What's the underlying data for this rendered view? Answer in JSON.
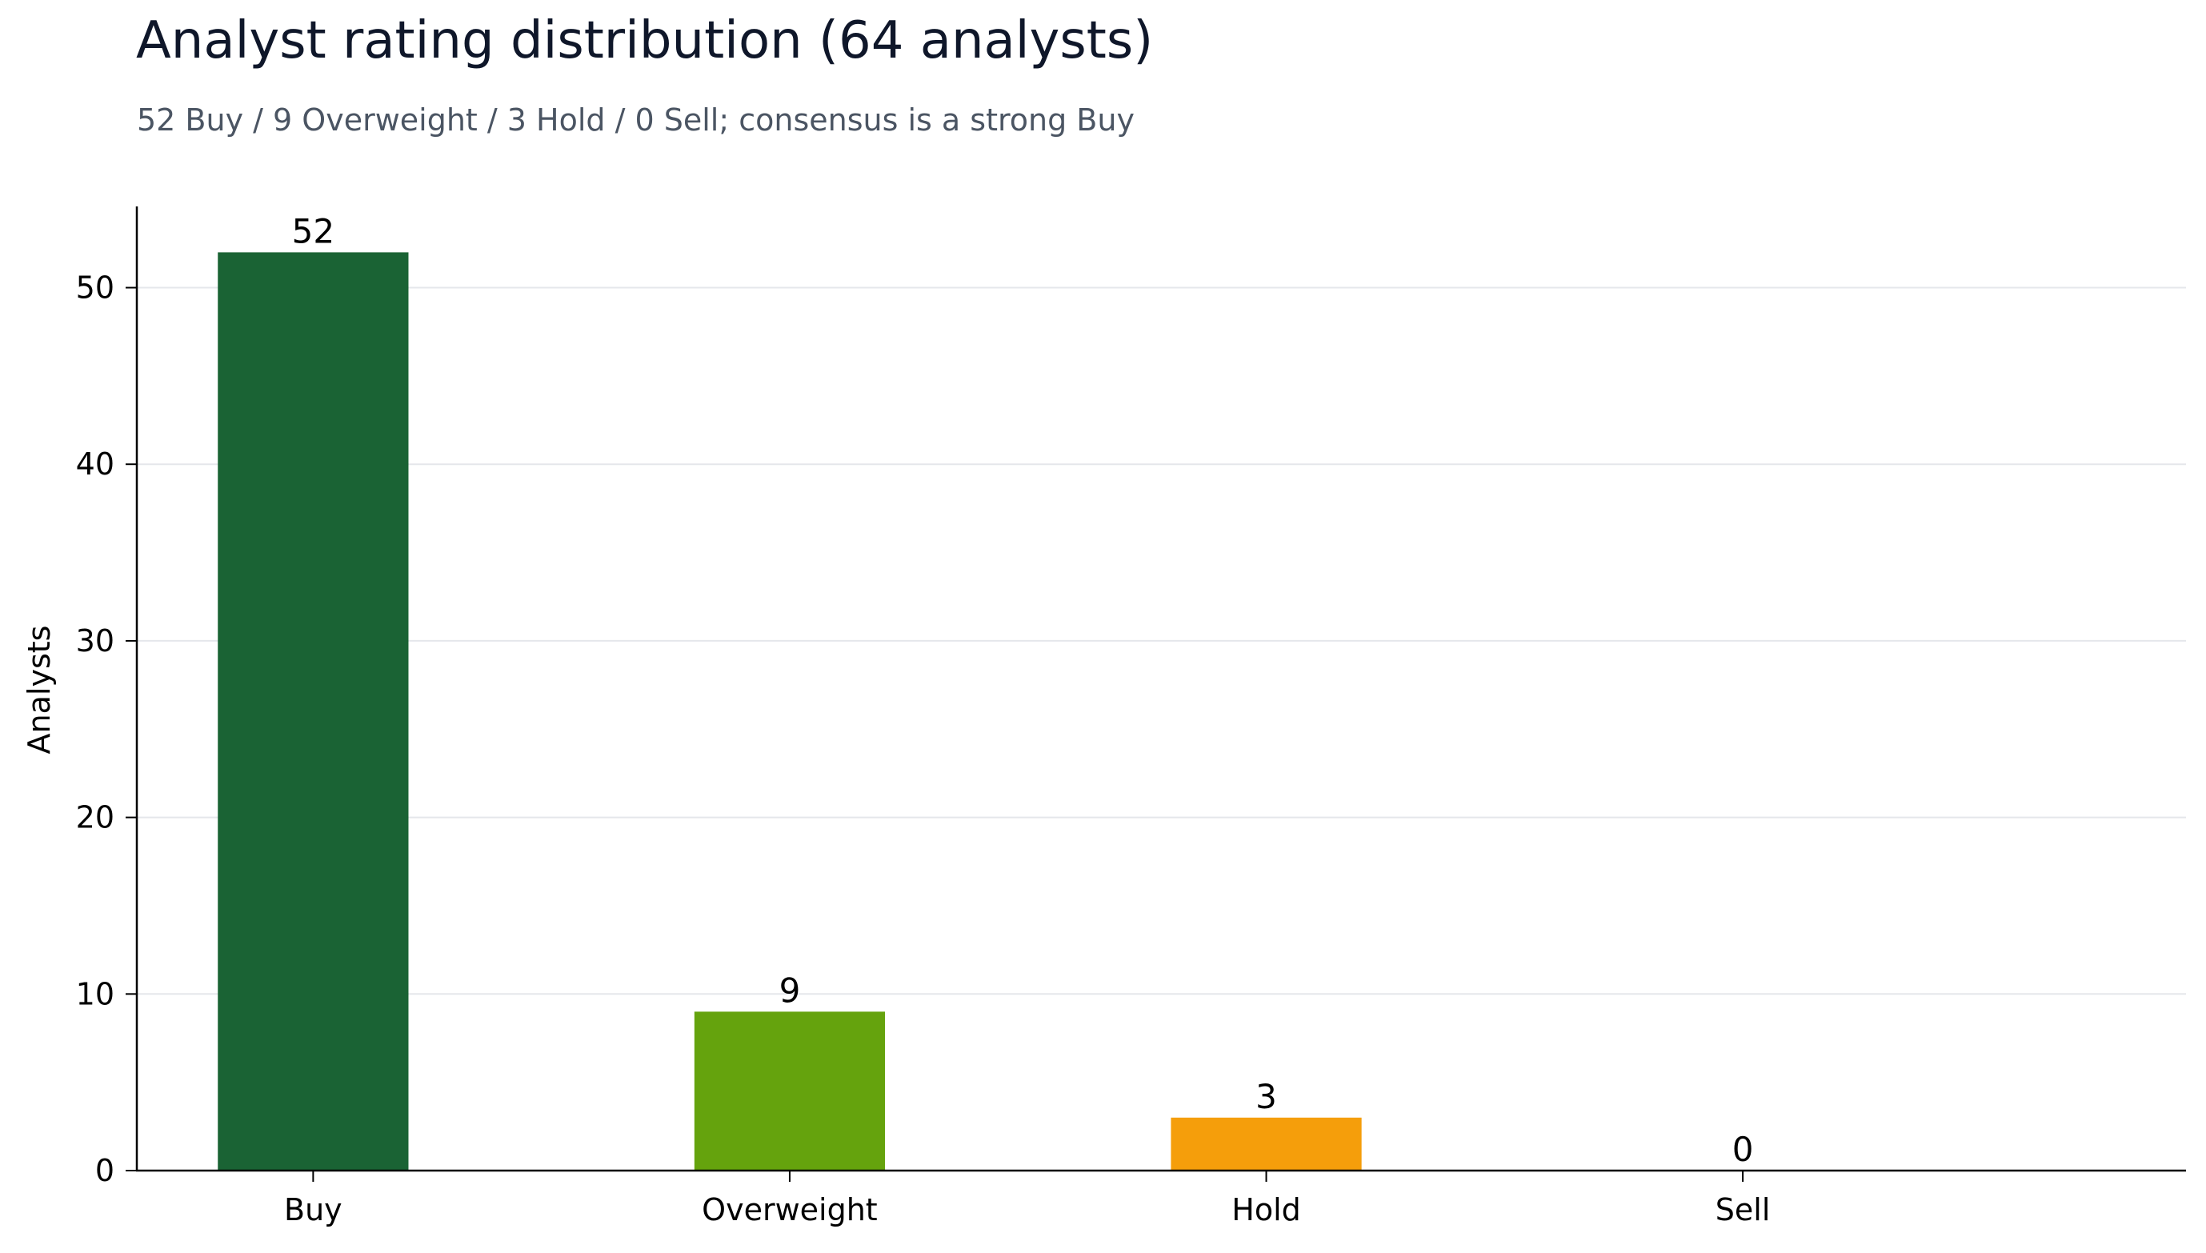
{
  "chart_data": {
    "type": "bar",
    "title": "Analyst rating distribution (64 analysts)",
    "subtitle": "52 Buy / 9 Overweight / 3 Hold / 0 Sell; consensus is a strong Buy",
    "xlabel": "",
    "ylabel": "Analysts",
    "categories": [
      "Buy",
      "Overweight",
      "Hold",
      "Sell"
    ],
    "values": [
      52,
      9,
      3,
      0
    ],
    "data_labels": [
      "52",
      "9",
      "3",
      "0"
    ],
    "colors": [
      "#1a6334",
      "#65a30d",
      "#f59e0b",
      "#dc2626"
    ],
    "ylim": [
      0,
      54.6
    ],
    "yticks": [
      0,
      10,
      20,
      30,
      40,
      50
    ],
    "grid": "horizontal",
    "legend": "none"
  }
}
